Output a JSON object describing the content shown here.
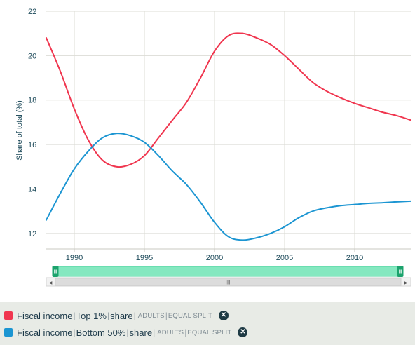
{
  "chart_data": {
    "type": "line",
    "ylabel": "Share of total (%)",
    "xlim": [
      1988,
      2014
    ],
    "ylim": [
      11,
      22
    ],
    "x_ticks": [
      1990,
      1995,
      2000,
      2005,
      2010
    ],
    "y_ticks": [
      12,
      14,
      16,
      18,
      20,
      22
    ],
    "grid": true,
    "series": [
      {
        "name": "Fiscal income | Top 1% | share | ADULTS | EQUAL SPLIT",
        "color": "#f0364f",
        "x": [
          1988,
          1989,
          1990,
          1991,
          1992,
          1993,
          1994,
          1995,
          1996,
          1997,
          1998,
          1999,
          2000,
          2001,
          2002,
          2003,
          2004,
          2005,
          2006,
          2007,
          2008,
          2009,
          2010,
          2011,
          2012,
          2013,
          2014
        ],
        "values": [
          20.8,
          19.3,
          17.6,
          16.2,
          15.3,
          15.0,
          15.1,
          15.5,
          16.3,
          17.1,
          17.9,
          19.0,
          20.2,
          20.9,
          21.0,
          20.8,
          20.5,
          20.0,
          19.4,
          18.8,
          18.4,
          18.1,
          17.85,
          17.65,
          17.45,
          17.3,
          17.1
        ]
      },
      {
        "name": "Fiscal income | Bottom 50% | share | ADULTS | EQUAL SPLIT",
        "color": "#1b95d2",
        "x": [
          1988,
          1989,
          1990,
          1991,
          1992,
          1993,
          1994,
          1995,
          1996,
          1997,
          1998,
          1999,
          2000,
          2001,
          2002,
          2003,
          2004,
          2005,
          2006,
          2007,
          2008,
          2009,
          2010,
          2011,
          2012,
          2013,
          2014
        ],
        "values": [
          12.6,
          13.8,
          14.9,
          15.7,
          16.3,
          16.5,
          16.4,
          16.1,
          15.5,
          14.8,
          14.2,
          13.4,
          12.5,
          11.85,
          11.7,
          11.8,
          12.0,
          12.3,
          12.7,
          13.0,
          13.15,
          13.25,
          13.3,
          13.35,
          13.38,
          13.42,
          13.45
        ]
      }
    ]
  },
  "navigator": {
    "range": [
      1988,
      2014
    ],
    "handle_grip": "II",
    "scrollbar_grip": "III",
    "left_arrow": "◀",
    "right_arrow": "▶"
  },
  "legend": [
    {
      "color": "#f0364f",
      "variable": "Fiscal income",
      "group": "Top 1%",
      "measure": "share",
      "population": "ADULTS",
      "unit": "EQUAL SPLIT",
      "sep": "|",
      "remove_icon": "✕"
    },
    {
      "color": "#1b95d2",
      "variable": "Fiscal income",
      "group": "Bottom 50%",
      "measure": "share",
      "population": "ADULTS",
      "unit": "EQUAL SPLIT",
      "sep": "|",
      "remove_icon": "✕"
    }
  ]
}
